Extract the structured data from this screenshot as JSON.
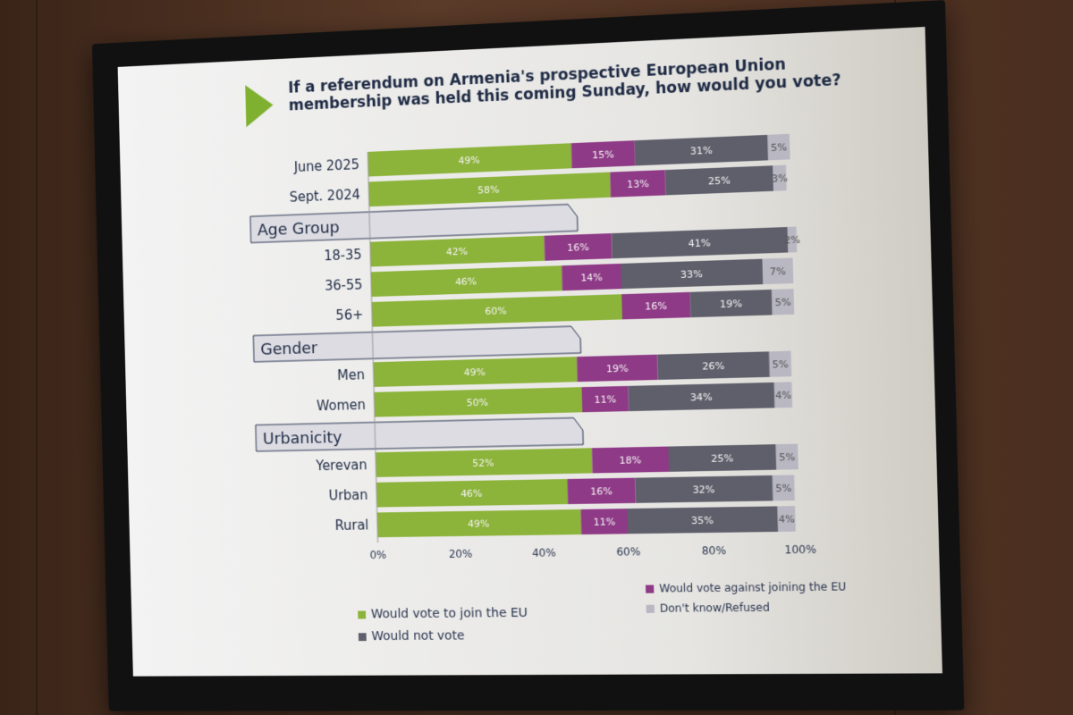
{
  "slide": {
    "title": "If a referendum on Armenia's prospective European Union membership was held this coming Sunday, how would you vote?"
  },
  "colors": {
    "join": "#8cb33a",
    "against": "#8e3a86",
    "not_vote": "#5e5f6b",
    "dont_know": "#b8b7c2",
    "accent": "#7fb030"
  },
  "chart_data": {
    "type": "bar",
    "orientation": "horizontal-stacked",
    "xlim": [
      0,
      100
    ],
    "xticks": [
      "0%",
      "20%",
      "40%",
      "60%",
      "80%",
      "100%"
    ],
    "series_names": [
      "Would vote to join the EU",
      "Would vote against joining the EU",
      "Would not vote",
      "Don't know/Refused"
    ],
    "groups": [
      {
        "header": "",
        "rows": [
          {
            "label": "June 2025",
            "values": [
              49,
              15,
              31,
              5
            ]
          },
          {
            "label": "Sept. 2024",
            "values": [
              58,
              13,
              25,
              3
            ]
          }
        ]
      },
      {
        "header": "Age Group",
        "rows": [
          {
            "label": "18-35",
            "values": [
              42,
              16,
              41,
              2
            ]
          },
          {
            "label": "36-55",
            "values": [
              46,
              14,
              33,
              7
            ]
          },
          {
            "label": "56+",
            "values": [
              60,
              16,
              19,
              5
            ]
          }
        ]
      },
      {
        "header": "Gender",
        "rows": [
          {
            "label": "Men",
            "values": [
              49,
              19,
              26,
              5
            ]
          },
          {
            "label": "Women",
            "values": [
              50,
              11,
              34,
              4
            ]
          }
        ]
      },
      {
        "header": "Urbanicity",
        "rows": [
          {
            "label": "Yerevan",
            "values": [
              52,
              18,
              25,
              5
            ]
          },
          {
            "label": "Urban",
            "values": [
              46,
              16,
              32,
              5
            ]
          },
          {
            "label": "Rural",
            "values": [
              49,
              11,
              35,
              4
            ]
          }
        ]
      }
    ]
  }
}
